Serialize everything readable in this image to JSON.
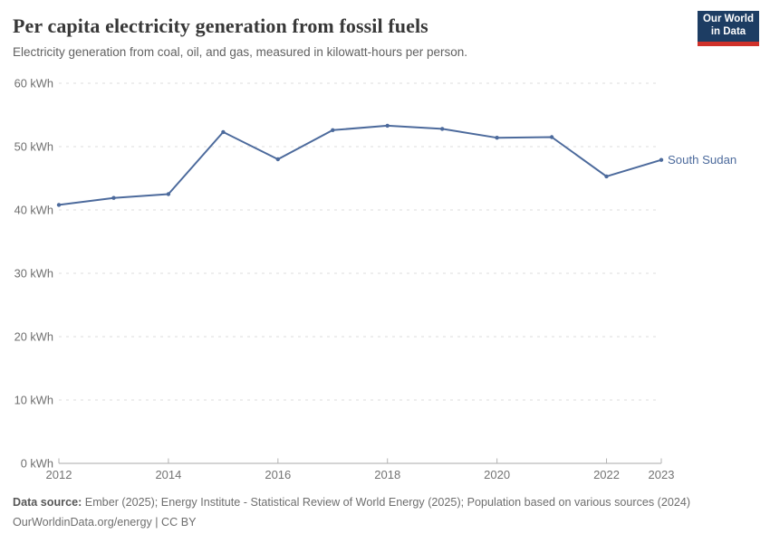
{
  "header": {
    "title": "Per capita electricity generation from fossil fuels",
    "subtitle": "Electricity generation from coal, oil, and gas, measured in kilowatt-hours per person.",
    "logo": {
      "line1": "Our World",
      "line2": "in Data",
      "bg_color": "#1d3d63",
      "accent_color": "#d0312a"
    }
  },
  "chart_data": {
    "type": "line",
    "title": "Per capita electricity generation from fossil fuels",
    "xlabel": "",
    "ylabel": "kilowatt-hours per person",
    "unit": "kWh",
    "x": [
      2012,
      2013,
      2014,
      2015,
      2016,
      2017,
      2018,
      2019,
      2020,
      2021,
      2022,
      2023
    ],
    "series": [
      {
        "name": "South Sudan",
        "color": "#4c6a9c",
        "values": [
          40.8,
          41.9,
          42.5,
          52.3,
          48.0,
          52.6,
          53.3,
          52.8,
          51.4,
          51.5,
          45.3,
          47.9
        ]
      }
    ],
    "ylim": [
      0,
      60
    ],
    "yticks": [
      0,
      10,
      20,
      30,
      40,
      50,
      60
    ],
    "ytick_suffix": " kWh",
    "xticks": [
      2012,
      2014,
      2016,
      2018,
      2020,
      2022,
      2023
    ],
    "grid": "horizontal-dashed",
    "gridline_color": "#dcdcdc",
    "axis_color": "#a8a8a8",
    "legend_position": "end-of-line-label"
  },
  "footer": {
    "source_label": "Data source:",
    "source_text": " Ember (2025); Energy Institute - Statistical Review of World Energy (2025); Population based on various sources (2024)",
    "license_line": "OurWorldinData.org/energy | CC BY"
  }
}
